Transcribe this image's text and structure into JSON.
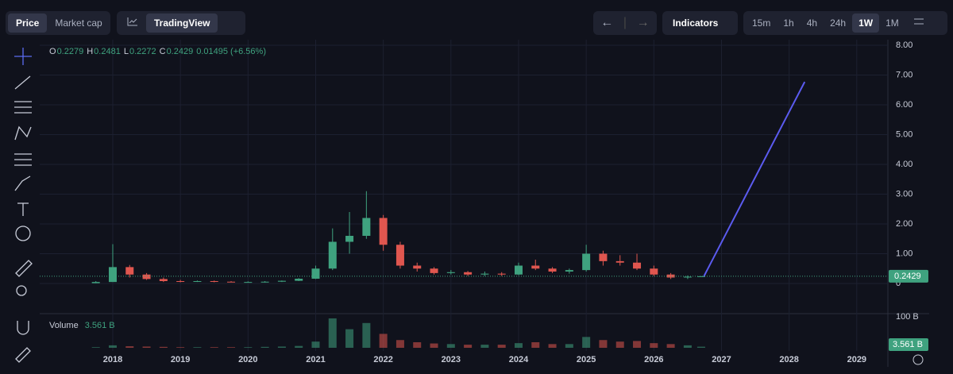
{
  "toolbar": {
    "price": "Price",
    "market_cap": "Market cap",
    "tradingview": "TradingView",
    "indicators": "Indicators",
    "intervals": [
      "15m",
      "1h",
      "4h",
      "24h",
      "1W",
      "1M"
    ],
    "active_interval": "1W"
  },
  "chart_data": {
    "type": "candlestick",
    "x": [
      2017.75,
      2018.0,
      2018.25,
      2018.5,
      2018.75,
      2019.0,
      2019.25,
      2019.5,
      2019.75,
      2020.0,
      2020.25,
      2020.5,
      2020.75,
      2021.0,
      2021.25,
      2021.5,
      2021.75,
      2022.0,
      2022.25,
      2022.5,
      2022.75,
      2023.0,
      2023.25,
      2023.5,
      2023.75,
      2024.0,
      2024.25,
      2024.5,
      2024.75,
      2025.0,
      2025.25,
      2025.5,
      2025.75,
      2026.0,
      2026.25,
      2026.5,
      2026.7
    ],
    "open": [
      0.01,
      0.05,
      0.55,
      0.3,
      0.15,
      0.08,
      0.07,
      0.08,
      0.06,
      0.05,
      0.05,
      0.06,
      0.09,
      0.16,
      0.5,
      1.4,
      1.6,
      2.2,
      1.3,
      0.6,
      0.5,
      0.35,
      0.38,
      0.3,
      0.33,
      0.3,
      0.6,
      0.5,
      0.4,
      0.45,
      1.0,
      0.75,
      0.7,
      0.5,
      0.3,
      0.2,
      0.2279
    ],
    "high": [
      0.08,
      1.32,
      0.62,
      0.35,
      0.2,
      0.12,
      0.1,
      0.1,
      0.08,
      0.07,
      0.08,
      0.1,
      0.18,
      0.6,
      1.85,
      2.4,
      3.1,
      2.3,
      1.4,
      0.7,
      0.55,
      0.45,
      0.42,
      0.4,
      0.38,
      0.7,
      0.8,
      0.55,
      0.5,
      1.3,
      1.1,
      0.95,
      1.0,
      0.6,
      0.35,
      0.27,
      0.2481
    ],
    "low": [
      0.01,
      0.05,
      0.2,
      0.12,
      0.05,
      0.04,
      0.05,
      0.04,
      0.04,
      0.03,
      0.03,
      0.05,
      0.08,
      0.15,
      0.45,
      1.0,
      1.5,
      1.1,
      0.5,
      0.4,
      0.3,
      0.3,
      0.25,
      0.25,
      0.25,
      0.28,
      0.45,
      0.35,
      0.33,
      0.4,
      0.6,
      0.6,
      0.45,
      0.25,
      0.15,
      0.15,
      0.2272
    ],
    "close": [
      0.05,
      0.55,
      0.3,
      0.15,
      0.08,
      0.07,
      0.08,
      0.06,
      0.05,
      0.05,
      0.06,
      0.09,
      0.16,
      0.5,
      1.4,
      1.6,
      2.2,
      1.3,
      0.6,
      0.5,
      0.35,
      0.38,
      0.3,
      0.33,
      0.3,
      0.6,
      0.5,
      0.4,
      0.45,
      1.0,
      0.75,
      0.7,
      0.5,
      0.3,
      0.2,
      0.2279,
      0.2429
    ],
    "volume": [
      2,
      8,
      5,
      4,
      3,
      2,
      2,
      2,
      2,
      2,
      3,
      4,
      6,
      20,
      95,
      60,
      80,
      45,
      25,
      18,
      14,
      12,
      10,
      10,
      10,
      15,
      18,
      12,
      12,
      35,
      25,
      20,
      22,
      15,
      12,
      8,
      3.561
    ],
    "legend_keys": [
      "O",
      "H",
      "L",
      "C"
    ],
    "legend": {
      "open": 0.2279,
      "high": 0.2481,
      "low": 0.2272,
      "close": 0.2429,
      "change": {
        "value": 0.01495,
        "label": "0.01495 (+6.56%)"
      }
    },
    "volume_title": "Volume",
    "volume_last": {
      "value": 3.561,
      "label": "3.561 B"
    },
    "xlim": [
      2016.92,
      2029.46
    ],
    "xticks": [
      2018,
      2019,
      2020,
      2021,
      2022,
      2023,
      2024,
      2025,
      2026,
      2027,
      2028,
      2029
    ],
    "ylim": [
      0,
      8
    ],
    "yticks": [
      0,
      {
        "value": 1,
        "label": "1.00"
      },
      {
        "value": 2,
        "label": "2.00"
      },
      {
        "value": 3,
        "label": "3.00"
      },
      {
        "value": 4,
        "label": "4.00"
      },
      {
        "value": 5,
        "label": "5.00"
      },
      {
        "value": 6,
        "label": "6.00"
      },
      {
        "value": 7,
        "label": "7.00"
      },
      {
        "value": 8,
        "label": "8.00"
      }
    ],
    "vlim": [
      0,
      100
    ],
    "vticks": [
      {
        "value": 100,
        "label": "100 B"
      }
    ],
    "trend_line": {
      "x": [
        2026.74,
        2028.23
      ],
      "y": [
        0.24,
        6.77
      ],
      "color": "#5b5bf0"
    },
    "up_color": "#3fa27f",
    "down_color": "#e0564f",
    "grid": true
  }
}
